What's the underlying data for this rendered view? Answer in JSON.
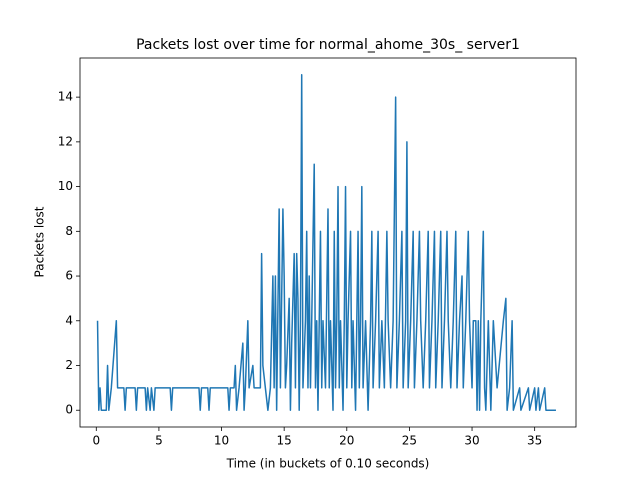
{
  "chart_data": {
    "type": "line",
    "title": "Packets lost over time for normal_ahome_30s_ server1",
    "x_label": "Time (in buckets of 0.10 seconds)",
    "y_label": "Packets lost",
    "color": "#1f77b4",
    "xlim": [
      -1.3,
      38.3
    ],
    "ylim": [
      -0.75,
      15.75
    ],
    "xticks": [
      0,
      5,
      10,
      15,
      20,
      25,
      30,
      35
    ],
    "yticks": [
      0,
      2,
      4,
      6,
      8,
      10,
      12,
      14
    ],
    "x": [
      0.1,
      0.2,
      0.3,
      0.4,
      0.8,
      0.9,
      1.0,
      1.2,
      1.6,
      1.7,
      2.2,
      2.3,
      2.4,
      3.1,
      3.2,
      3.3,
      3.9,
      4.0,
      4.1,
      4.3,
      4.4,
      4.6,
      4.7,
      5.9,
      6.0,
      6.1,
      8.2,
      8.3,
      8.4,
      8.9,
      9.0,
      9.1,
      10.5,
      10.6,
      10.7,
      11.0,
      11.1,
      11.2,
      11.4,
      11.7,
      11.8,
      11.9,
      12.1,
      12.2,
      12.5,
      12.6,
      13.1,
      13.2,
      13.3,
      13.5,
      13.7,
      13.9,
      14.1,
      14.2,
      14.3,
      14.4,
      14.6,
      14.7,
      14.9,
      15.0,
      15.1,
      15.2,
      15.4,
      15.5,
      15.6,
      15.8,
      15.9,
      16.0,
      16.1,
      16.2,
      16.3,
      16.4,
      16.5,
      16.7,
      16.8,
      16.9,
      17.0,
      17.1,
      17.2,
      17.4,
      17.5,
      17.6,
      17.7,
      17.9,
      18.0,
      18.1,
      18.3,
      18.5,
      18.6,
      18.7,
      18.9,
      19.0,
      19.1,
      19.2,
      19.3,
      19.4,
      19.5,
      19.7,
      19.8,
      19.9,
      20.0,
      20.1,
      20.3,
      20.4,
      20.5,
      20.7,
      20.8,
      20.9,
      21.0,
      21.1,
      21.2,
      21.3,
      21.5,
      21.7,
      21.9,
      22.0,
      22.1,
      22.3,
      22.5,
      22.6,
      22.8,
      23.0,
      23.2,
      23.3,
      23.5,
      23.7,
      23.9,
      24.0,
      24.2,
      24.4,
      24.5,
      24.7,
      24.8,
      24.9,
      25.1,
      25.3,
      25.4,
      25.6,
      25.8,
      25.9,
      26.1,
      26.3,
      26.5,
      26.6,
      26.8,
      27.0,
      27.1,
      27.3,
      27.5,
      27.6,
      27.8,
      28.0,
      28.1,
      28.3,
      28.5,
      28.7,
      28.8,
      29.0,
      29.2,
      29.3,
      29.5,
      29.7,
      29.8,
      30.0,
      30.1,
      30.3,
      30.4,
      30.5,
      30.6,
      30.7,
      30.9,
      31.0,
      31.1,
      31.3,
      31.5,
      31.7,
      32.0,
      32.5,
      32.7,
      32.8,
      33.0,
      33.2,
      33.3,
      33.8,
      33.9,
      34.5,
      34.6,
      35.0,
      35.1,
      35.3,
      35.4,
      35.8,
      35.9,
      36.7
    ],
    "values": [
      4,
      0,
      1,
      0,
      0,
      2,
      0,
      1,
      4,
      1,
      1,
      0,
      1,
      1,
      0,
      1,
      1,
      0,
      1,
      0,
      1,
      0,
      1,
      1,
      0,
      1,
      1,
      0,
      1,
      1,
      0,
      1,
      1,
      0,
      1,
      1,
      2,
      0,
      1,
      3,
      0,
      1,
      4,
      1,
      2,
      1,
      1,
      7,
      2,
      1,
      0,
      1,
      6,
      1,
      6,
      0,
      9,
      1,
      9,
      6,
      1,
      2,
      5,
      0,
      3,
      7,
      1,
      7,
      5,
      0,
      4,
      15,
      1,
      4,
      8,
      1,
      6,
      1,
      4,
      11,
      1,
      4,
      0,
      8,
      1,
      4,
      1,
      9,
      1,
      4,
      0,
      8,
      1,
      4,
      10,
      1,
      4,
      0,
      4,
      10,
      1,
      4,
      8,
      1,
      4,
      0,
      4,
      8,
      1,
      4,
      10,
      1,
      4,
      0,
      4,
      8,
      1,
      4,
      8,
      1,
      4,
      1,
      8,
      4,
      1,
      4,
      14,
      1,
      4,
      8,
      1,
      4,
      12,
      1,
      4,
      8,
      1,
      4,
      8,
      4,
      1,
      4,
      8,
      1,
      4,
      8,
      1,
      4,
      8,
      1,
      4,
      8,
      4,
      1,
      4,
      8,
      1,
      4,
      6,
      1,
      4,
      8,
      4,
      1,
      4,
      4,
      0,
      4,
      0,
      4,
      8,
      1,
      0,
      4,
      0,
      4,
      1,
      4,
      5,
      0,
      1,
      4,
      0,
      1,
      0,
      1,
      0,
      1,
      0,
      1,
      0,
      1,
      0,
      0
    ]
  }
}
